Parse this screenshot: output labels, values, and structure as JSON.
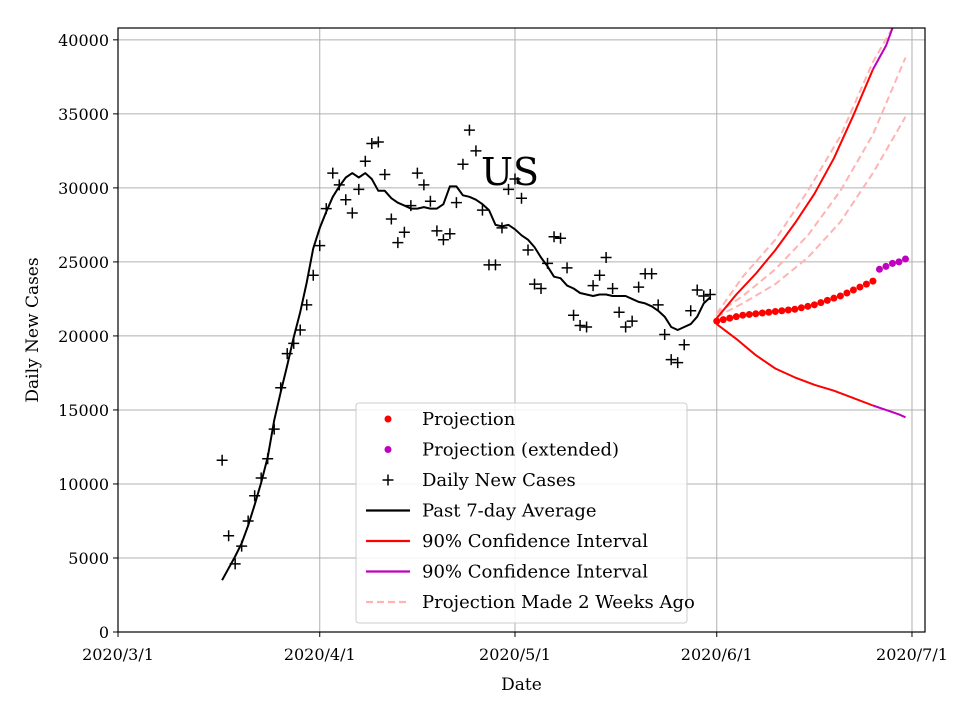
{
  "chart_data": {
    "type": "line",
    "title": "US",
    "xlabel": "Date",
    "ylabel": "Daily New Cases",
    "xlim": [
      "2020-03-01",
      "2020-07-03"
    ],
    "ylim": [
      0,
      40800
    ],
    "grid": true,
    "x_ticks": [
      "2020/3/1",
      "2020/4/1",
      "2020/5/1",
      "2020/6/1",
      "2020/7/1"
    ],
    "x_tick_dates": [
      "2020-03-01",
      "2020-04-01",
      "2020-05-01",
      "2020-06-01",
      "2020-07-01"
    ],
    "y_ticks": [
      0,
      5000,
      10000,
      15000,
      20000,
      25000,
      30000,
      35000,
      40000
    ],
    "legend_position": "lower center",
    "legend": [
      {
        "label": "Projection",
        "marker": "dot",
        "color": "#ff0000"
      },
      {
        "label": "Projection (extended)",
        "marker": "dot",
        "color": "#bf00bf"
      },
      {
        "label": "Daily New Cases",
        "marker": "plus",
        "color": "#000000"
      },
      {
        "label": "Past 7-day Average",
        "marker": "line",
        "color": "#000000"
      },
      {
        "label": "90% Confidence Interval",
        "marker": "line",
        "color": "#ff0000"
      },
      {
        "label": "90% Confidence Interval",
        "marker": "line",
        "color": "#bf00bf"
      },
      {
        "label": "Projection Made 2 Weeks Ago",
        "marker": "dashed",
        "color": "#ffb3b3"
      }
    ],
    "series": [
      {
        "name": "Daily New Cases",
        "kind": "scatter-plus",
        "color": "#000000",
        "x": [
          "2020-03-17",
          "2020-03-18",
          "2020-03-19",
          "2020-03-20",
          "2020-03-21",
          "2020-03-22",
          "2020-03-23",
          "2020-03-24",
          "2020-03-25",
          "2020-03-26",
          "2020-03-27",
          "2020-03-28",
          "2020-03-29",
          "2020-03-30",
          "2020-03-31",
          "2020-04-01",
          "2020-04-02",
          "2020-04-03",
          "2020-04-04",
          "2020-04-05",
          "2020-04-06",
          "2020-04-07",
          "2020-04-08",
          "2020-04-09",
          "2020-04-10",
          "2020-04-11",
          "2020-04-12",
          "2020-04-13",
          "2020-04-14",
          "2020-04-15",
          "2020-04-16",
          "2020-04-17",
          "2020-04-18",
          "2020-04-19",
          "2020-04-20",
          "2020-04-21",
          "2020-04-22",
          "2020-04-23",
          "2020-04-24",
          "2020-04-25",
          "2020-04-26",
          "2020-04-27",
          "2020-04-28",
          "2020-04-29",
          "2020-04-30",
          "2020-05-01",
          "2020-05-02",
          "2020-05-03",
          "2020-05-04",
          "2020-05-05",
          "2020-05-06",
          "2020-05-07",
          "2020-05-08",
          "2020-05-09",
          "2020-05-10",
          "2020-05-11",
          "2020-05-12",
          "2020-05-13",
          "2020-05-14",
          "2020-05-15",
          "2020-05-16",
          "2020-05-17",
          "2020-05-18",
          "2020-05-19",
          "2020-05-20",
          "2020-05-21",
          "2020-05-22",
          "2020-05-23",
          "2020-05-24",
          "2020-05-25",
          "2020-05-26",
          "2020-05-27",
          "2020-05-28",
          "2020-05-29",
          "2020-05-30",
          "2020-05-31"
        ],
        "y": [
          11600,
          6500,
          4600,
          5800,
          7500,
          9200,
          10400,
          11700,
          13700,
          16500,
          18800,
          19500,
          20400,
          22100,
          24100,
          26100,
          28600,
          31000,
          30200,
          29200,
          28300,
          29900,
          31800,
          33000,
          33100,
          30900,
          27900,
          26300,
          27000,
          28800,
          31000,
          30200,
          29100,
          27100,
          26500,
          26900,
          29000,
          31600,
          33900,
          32500,
          28500,
          24800,
          24800,
          27300,
          29900,
          30600,
          29300,
          25800,
          23500,
          23200,
          24900,
          26700,
          26600,
          24600,
          21400,
          20700,
          20600,
          23400,
          24100,
          25300,
          23200,
          21600,
          20600,
          21000,
          23300,
          24200,
          24200,
          22100,
          20100,
          18400,
          18200,
          19400,
          21700,
          23100,
          22700,
          22800
        ]
      },
      {
        "name": "Past 7-day Average",
        "kind": "line",
        "color": "#000000",
        "x": [
          "2020-03-17",
          "2020-03-18",
          "2020-03-19",
          "2020-03-20",
          "2020-03-21",
          "2020-03-22",
          "2020-03-23",
          "2020-03-24",
          "2020-03-25",
          "2020-03-26",
          "2020-03-27",
          "2020-03-28",
          "2020-03-29",
          "2020-03-30",
          "2020-03-31",
          "2020-04-01",
          "2020-04-02",
          "2020-04-03",
          "2020-04-04",
          "2020-04-05",
          "2020-04-06",
          "2020-04-07",
          "2020-04-08",
          "2020-04-09",
          "2020-04-10",
          "2020-04-11",
          "2020-04-12",
          "2020-04-13",
          "2020-04-14",
          "2020-04-15",
          "2020-04-16",
          "2020-04-17",
          "2020-04-18",
          "2020-04-19",
          "2020-04-20",
          "2020-04-21",
          "2020-04-22",
          "2020-04-23",
          "2020-04-24",
          "2020-04-25",
          "2020-04-26",
          "2020-04-27",
          "2020-04-28",
          "2020-04-29",
          "2020-04-30",
          "2020-05-01",
          "2020-05-02",
          "2020-05-03",
          "2020-05-04",
          "2020-05-05",
          "2020-05-06",
          "2020-05-07",
          "2020-05-08",
          "2020-05-09",
          "2020-05-10",
          "2020-05-11",
          "2020-05-12",
          "2020-05-13",
          "2020-05-14",
          "2020-05-15",
          "2020-05-16",
          "2020-05-17",
          "2020-05-18",
          "2020-05-19",
          "2020-05-20",
          "2020-05-21",
          "2020-05-22",
          "2020-05-23",
          "2020-05-24",
          "2020-05-25",
          "2020-05-26",
          "2020-05-27",
          "2020-05-28",
          "2020-05-29",
          "2020-05-30",
          "2020-05-31"
        ],
        "y": [
          3500,
          4300,
          5100,
          6000,
          7200,
          8600,
          10100,
          11800,
          14300,
          16200,
          18000,
          19900,
          21600,
          23600,
          25900,
          27300,
          28400,
          29400,
          30100,
          30700,
          31000,
          30700,
          31000,
          30600,
          29800,
          29800,
          29300,
          29000,
          28800,
          28600,
          28600,
          28700,
          28600,
          28600,
          28900,
          30100,
          30100,
          29500,
          29400,
          29200,
          28900,
          28500,
          27500,
          27400,
          27500,
          27200,
          26800,
          26500,
          26000,
          25300,
          24700,
          24000,
          23900,
          23400,
          23200,
          22900,
          22800,
          22700,
          22800,
          22800,
          22700,
          22700,
          22700,
          22500,
          22300,
          22200,
          22000,
          21700,
          21300,
          20600,
          20400,
          20600,
          20800,
          21300,
          22200,
          22600
        ]
      },
      {
        "name": "Projection",
        "kind": "scatter-dot",
        "color": "#ff0000",
        "x": [
          "2020-06-01",
          "2020-06-02",
          "2020-06-03",
          "2020-06-04",
          "2020-06-05",
          "2020-06-06",
          "2020-06-07",
          "2020-06-08",
          "2020-06-09",
          "2020-06-10",
          "2020-06-11",
          "2020-06-12",
          "2020-06-13",
          "2020-06-14",
          "2020-06-15",
          "2020-06-16",
          "2020-06-17",
          "2020-06-18",
          "2020-06-19",
          "2020-06-20",
          "2020-06-21",
          "2020-06-22",
          "2020-06-23",
          "2020-06-24",
          "2020-06-25"
        ],
        "y": [
          21000,
          21100,
          21200,
          21300,
          21400,
          21450,
          21500,
          21550,
          21600,
          21650,
          21700,
          21750,
          21800,
          21900,
          22000,
          22100,
          22250,
          22400,
          22550,
          22700,
          22900,
          23100,
          23300,
          23500,
          23700
        ]
      },
      {
        "name": "Projection (extended)",
        "kind": "scatter-dot",
        "color": "#bf00bf",
        "x": [
          "2020-06-26",
          "2020-06-27",
          "2020-06-28",
          "2020-06-29",
          "2020-06-30"
        ],
        "y": [
          24500,
          24700,
          24900,
          25000,
          25200
        ]
      },
      {
        "name": "90% Confidence Interval",
        "kind": "line",
        "color": "#ff0000",
        "x": [
          "2020-06-01",
          "2020-06-04",
          "2020-06-07",
          "2020-06-10",
          "2020-06-13",
          "2020-06-16",
          "2020-06-19",
          "2020-06-22",
          "2020-06-25"
        ],
        "y": [
          21200,
          22800,
          24200,
          25800,
          27600,
          29600,
          32000,
          34900,
          38000
        ]
      },
      {
        "name": "90% Confidence Interval",
        "kind": "line",
        "color": "#ff0000",
        "x": [
          "2020-06-01",
          "2020-06-04",
          "2020-06-07",
          "2020-06-10",
          "2020-06-13",
          "2020-06-16",
          "2020-06-19",
          "2020-06-22",
          "2020-06-25"
        ],
        "y": [
          20800,
          19800,
          18700,
          17800,
          17200,
          16700,
          16300,
          15800,
          15300
        ]
      },
      {
        "name": "90% Confidence Interval",
        "kind": "line",
        "color": "#bf00bf",
        "x": [
          "2020-06-25",
          "2020-06-26",
          "2020-06-27",
          "2020-06-28"
        ],
        "y": [
          38000,
          38800,
          39600,
          40800
        ]
      },
      {
        "name": "90% Confidence Interval",
        "kind": "line",
        "color": "#bf00bf",
        "x": [
          "2020-06-25",
          "2020-06-27",
          "2020-06-29",
          "2020-06-30"
        ],
        "y": [
          15300,
          15000,
          14700,
          14500
        ]
      },
      {
        "name": "Projection Made 2 Weeks Ago",
        "kind": "dashed",
        "color": "#ffb3b3",
        "x": [
          "2020-06-01",
          "2020-06-05",
          "2020-06-10",
          "2020-06-15",
          "2020-06-20",
          "2020-06-25",
          "2020-06-28"
        ],
        "y": [
          21500,
          24000,
          26500,
          29800,
          33500,
          38500,
          40800
        ]
      },
      {
        "name": "Projection Made 2 Weeks Ago",
        "kind": "dashed",
        "color": "#ffb3b3",
        "x": [
          "2020-06-01",
          "2020-06-05",
          "2020-06-10",
          "2020-06-15",
          "2020-06-20",
          "2020-06-25",
          "2020-06-30"
        ],
        "y": [
          21500,
          22700,
          24500,
          26800,
          29800,
          33600,
          38800
        ]
      },
      {
        "name": "Projection Made 2 Weeks Ago",
        "kind": "dashed",
        "color": "#ffb3b3",
        "x": [
          "2020-06-01",
          "2020-06-05",
          "2020-06-10",
          "2020-06-15",
          "2020-06-20",
          "2020-06-25",
          "2020-06-30"
        ],
        "y": [
          21300,
          22200,
          23500,
          25300,
          27700,
          31000,
          34800
        ]
      }
    ]
  }
}
